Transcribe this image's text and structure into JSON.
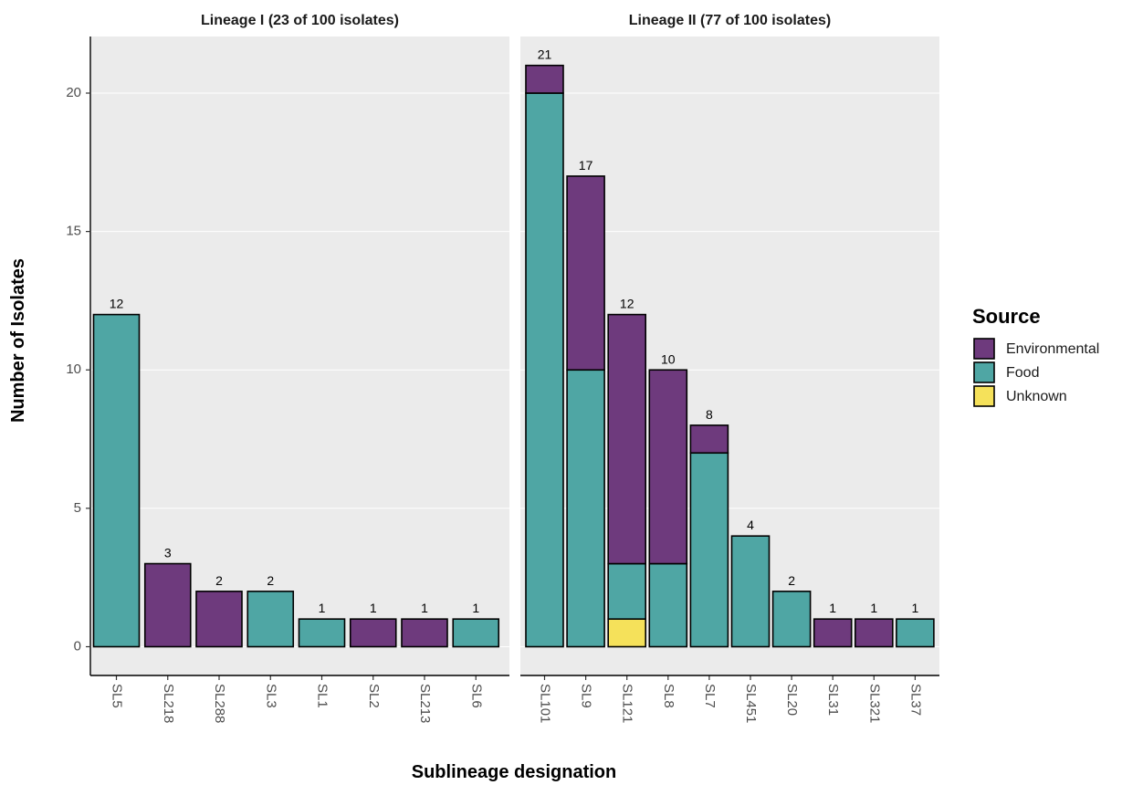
{
  "chart_data": {
    "type": "bar",
    "stacked": true,
    "xlabel": "Sublineage designation",
    "ylabel": "Number of Isolates",
    "ylim": [
      0,
      22
    ],
    "yticks": [
      0,
      5,
      10,
      15,
      20
    ],
    "grid": true,
    "legend": {
      "title": "Source",
      "position": "right",
      "entries": [
        {
          "name": "Environmental",
          "color": "#6e3a7d"
        },
        {
          "name": "Food",
          "color": "#4fa6a4"
        },
        {
          "name": "Unknown",
          "color": "#f5e15a"
        }
      ]
    },
    "panels": [
      {
        "title": "Lineage I (23 of 100 isolates)",
        "categories": [
          "SL5",
          "SL218",
          "SL288",
          "SL3",
          "SL1",
          "SL2",
          "SL213",
          "SL6"
        ],
        "totals": [
          12,
          3,
          2,
          2,
          1,
          1,
          1,
          1
        ],
        "series": [
          {
            "name": "Unknown",
            "values": [
              0,
              0,
              0,
              0,
              0,
              0,
              0,
              0
            ]
          },
          {
            "name": "Food",
            "values": [
              12,
              0,
              0,
              2,
              1,
              0,
              0,
              1
            ]
          },
          {
            "name": "Environmental",
            "values": [
              0,
              3,
              2,
              0,
              0,
              1,
              1,
              0
            ]
          }
        ]
      },
      {
        "title": "Lineage II (77 of 100 isolates)",
        "categories": [
          "SL101",
          "SL9",
          "SL121",
          "SL8",
          "SL7",
          "SL451",
          "SL20",
          "SL31",
          "SL321",
          "SL37"
        ],
        "totals": [
          21,
          17,
          12,
          10,
          8,
          4,
          2,
          1,
          1,
          1
        ],
        "series": [
          {
            "name": "Unknown",
            "values": [
              0,
              0,
              1,
              0,
              0,
              0,
              0,
              0,
              0,
              0
            ]
          },
          {
            "name": "Food",
            "values": [
              20,
              10,
              2,
              3,
              7,
              4,
              2,
              0,
              0,
              1
            ]
          },
          {
            "name": "Environmental",
            "values": [
              1,
              7,
              9,
              7,
              1,
              0,
              0,
              1,
              1,
              0
            ]
          }
        ]
      }
    ]
  }
}
